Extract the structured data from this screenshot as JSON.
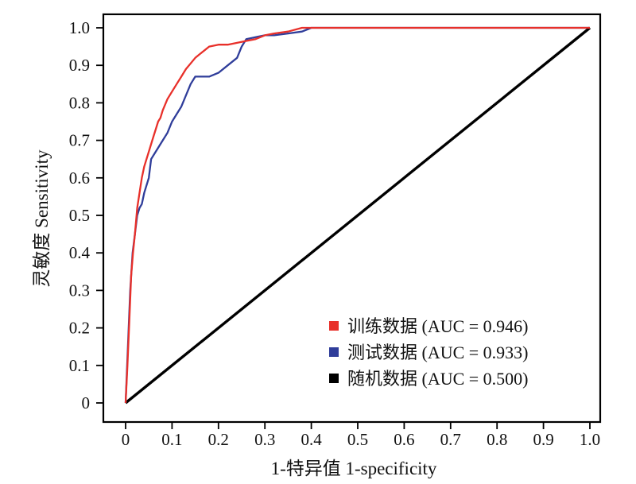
{
  "chart_data": {
    "type": "line",
    "title": "",
    "xlabel": "1-特异值 1-specificity",
    "ylabel": "灵敏度 Sensitivity",
    "xlim": [
      0,
      1
    ],
    "ylim": [
      0,
      1
    ],
    "x_ticks": [
      "0",
      "0.1",
      "0.2",
      "0.3",
      "0.4",
      "0.5",
      "0.6",
      "0.7",
      "0.8",
      "0.9",
      "1.0"
    ],
    "y_ticks": [
      "0",
      "0.1",
      "0.2",
      "0.3",
      "0.4",
      "0.5",
      "0.6",
      "0.7",
      "0.8",
      "0.9",
      "1.0"
    ],
    "grid": false,
    "legend_position": "bottom-right",
    "series": [
      {
        "name": "训练数据 (AUC = 0.946)",
        "color": "#e8302a",
        "x": [
          0,
          0.004,
          0.008,
          0.012,
          0.016,
          0.02,
          0.025,
          0.03,
          0.035,
          0.04,
          0.045,
          0.05,
          0.055,
          0.06,
          0.065,
          0.07,
          0.075,
          0.08,
          0.09,
          0.1,
          0.11,
          0.12,
          0.13,
          0.14,
          0.15,
          0.16,
          0.17,
          0.18,
          0.2,
          0.22,
          0.24,
          0.26,
          0.28,
          0.3,
          0.32,
          0.35,
          0.38,
          0.4,
          0.5,
          0.6,
          0.7,
          0.8,
          0.9,
          1.0
        ],
        "y": [
          0,
          0.1,
          0.22,
          0.34,
          0.4,
          0.45,
          0.52,
          0.56,
          0.6,
          0.63,
          0.65,
          0.67,
          0.69,
          0.71,
          0.73,
          0.75,
          0.76,
          0.78,
          0.81,
          0.83,
          0.85,
          0.87,
          0.89,
          0.905,
          0.92,
          0.93,
          0.94,
          0.95,
          0.955,
          0.955,
          0.96,
          0.965,
          0.97,
          0.98,
          0.985,
          0.99,
          1.0,
          1.0,
          1.0,
          1.0,
          1.0,
          1.0,
          1.0,
          1.0
        ]
      },
      {
        "name": "测试数据 (AUC = 0.933)",
        "color": "#2f3d9a",
        "x": [
          0,
          0.005,
          0.01,
          0.015,
          0.02,
          0.025,
          0.03,
          0.035,
          0.04,
          0.05,
          0.055,
          0.06,
          0.07,
          0.08,
          0.09,
          0.1,
          0.11,
          0.12,
          0.13,
          0.14,
          0.15,
          0.16,
          0.18,
          0.2,
          0.22,
          0.24,
          0.25,
          0.26,
          0.28,
          0.3,
          0.32,
          0.35,
          0.38,
          0.4,
          0.5,
          0.6,
          0.7,
          0.8,
          0.9,
          1.0
        ],
        "y": [
          0,
          0.15,
          0.3,
          0.4,
          0.45,
          0.5,
          0.52,
          0.53,
          0.56,
          0.6,
          0.65,
          0.66,
          0.68,
          0.7,
          0.72,
          0.75,
          0.77,
          0.79,
          0.82,
          0.85,
          0.87,
          0.87,
          0.87,
          0.88,
          0.9,
          0.92,
          0.95,
          0.97,
          0.975,
          0.98,
          0.98,
          0.985,
          0.99,
          1.0,
          1.0,
          1.0,
          1.0,
          1.0,
          1.0,
          1.0
        ]
      },
      {
        "name": "随机数据 (AUC = 0.500)",
        "color": "#000000",
        "x": [
          0,
          1
        ],
        "y": [
          0,
          1
        ]
      }
    ]
  }
}
